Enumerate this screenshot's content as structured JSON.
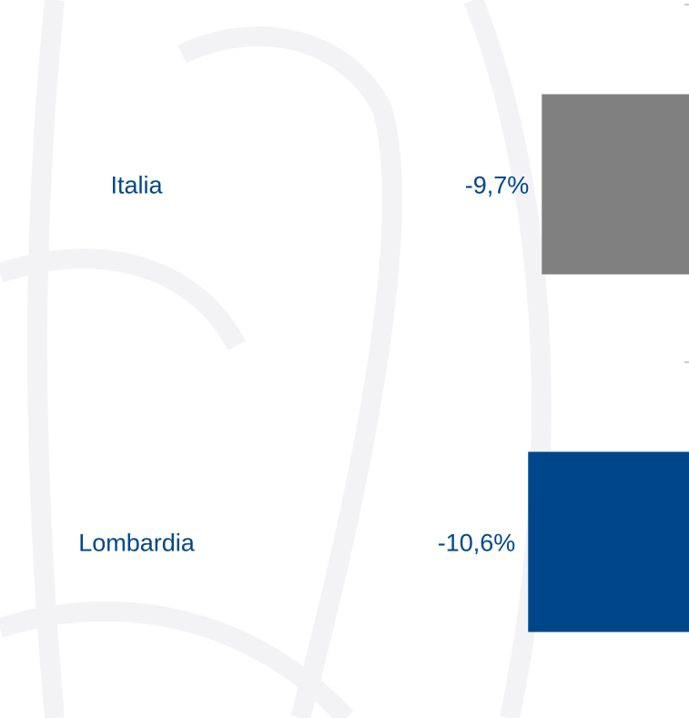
{
  "chart_data": {
    "type": "bar",
    "orientation": "horizontal",
    "categories": [
      "Italia",
      "Lombardia"
    ],
    "values": [
      -9.7,
      -10.6
    ],
    "value_labels": [
      "-9,7%",
      "-10,6%"
    ],
    "colors": [
      "#808080",
      "#00468b"
    ],
    "xlim": [
      -45.4,
      0
    ]
  }
}
